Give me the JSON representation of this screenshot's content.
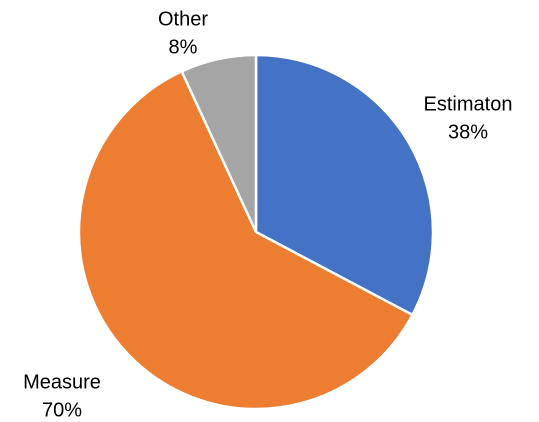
{
  "chart_data": {
    "type": "pie",
    "categories": [
      "Estimaton",
      "Measure",
      "Other"
    ],
    "values": [
      38,
      70,
      8
    ],
    "value_labels": [
      "38%",
      "70%",
      "8%"
    ],
    "colors": [
      "#4472c4",
      "#ed7d31",
      "#a5a5a5"
    ]
  }
}
